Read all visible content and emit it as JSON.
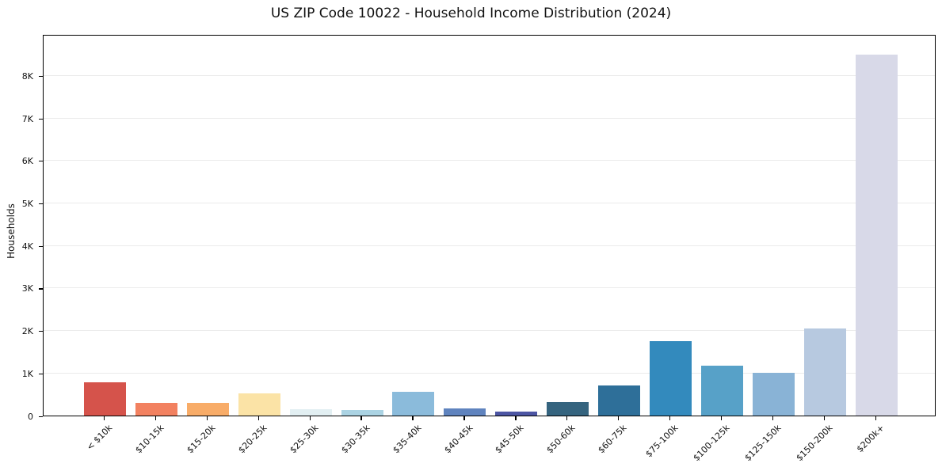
{
  "title": "US ZIP Code 10022 - Household Income Distribution (2024)",
  "chart_data": {
    "type": "bar",
    "title": "US ZIP Code 10022 - Household Income Distribution (2024)",
    "xlabel": "",
    "ylabel": "Households",
    "categories": [
      "< $10k",
      "$10-15k",
      "$15-20k",
      "$20-25k",
      "$25-30k",
      "$30-35k",
      "$35-40k",
      "$40-45k",
      "$45-50k",
      "$50-60k",
      "$60-75k",
      "$75-100k",
      "$100-125k",
      "$125-150k",
      "$150-200k",
      "$200k+"
    ],
    "values": [
      780,
      295,
      290,
      520,
      140,
      130,
      560,
      175,
      100,
      310,
      700,
      1750,
      1180,
      1000,
      2050,
      8500
    ],
    "bar_colors": [
      "#d5534b",
      "#f28160",
      "#f8ac68",
      "#fbe3a6",
      "#e2eff2",
      "#abd3e3",
      "#8bbbdb",
      "#5f83be",
      "#4c55a3",
      "#35647f",
      "#2e6f99",
      "#338abd",
      "#57a1c8",
      "#89b3d6",
      "#b7c9e0",
      "#d8d9e8"
    ],
    "ylim": [
      0,
      8975
    ],
    "ytick_values": [
      0,
      1000,
      2000,
      3000,
      4000,
      5000,
      6000,
      7000,
      8000
    ],
    "ytick_labels": [
      "0",
      "1K",
      "2K",
      "3K",
      "4K",
      "5K",
      "6K",
      "7K",
      "8K"
    ],
    "grid": "horizontal",
    "legend": "none",
    "xtick_rotation_deg": 45,
    "colors": {
      "background": "#ffffff",
      "gridline": "#ebebeb",
      "axis": "#000000",
      "text": "#111111"
    }
  }
}
